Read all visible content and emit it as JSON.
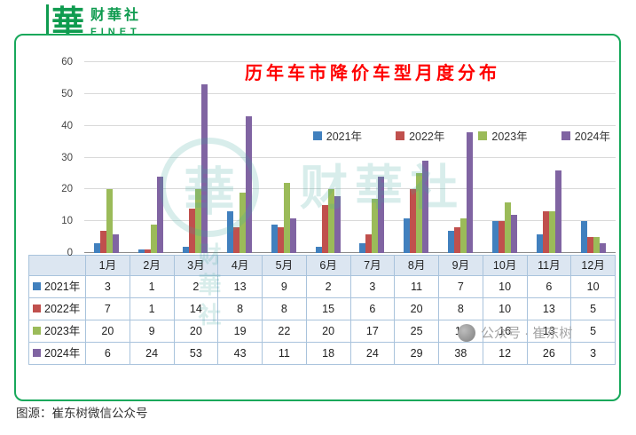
{
  "logo": {
    "glyph": "華",
    "name": "财華社",
    "sub": "FINET"
  },
  "chart_data": {
    "type": "bar",
    "title": "历年车市降价车型月度分布",
    "categories": [
      "1月",
      "2月",
      "3月",
      "4月",
      "5月",
      "6月",
      "7月",
      "8月",
      "9月",
      "10月",
      "11月",
      "12月"
    ],
    "series": [
      {
        "name": "2021年",
        "color": "#4180be",
        "values": [
          3,
          1,
          2,
          13,
          9,
          2,
          3,
          11,
          7,
          10,
          6,
          10
        ]
      },
      {
        "name": "2022年",
        "color": "#c0504d",
        "values": [
          7,
          1,
          14,
          8,
          8,
          15,
          6,
          20,
          8,
          10,
          13,
          5
        ]
      },
      {
        "name": "2023年",
        "color": "#9bbb59",
        "values": [
          20,
          9,
          20,
          19,
          22,
          20,
          17,
          25,
          11,
          16,
          13,
          5
        ]
      },
      {
        "name": "2024年",
        "color": "#8064a2",
        "values": [
          6,
          24,
          53,
          43,
          11,
          18,
          24,
          29,
          38,
          12,
          26,
          3
        ]
      }
    ],
    "ylim": [
      0,
      60
    ],
    "yticks": [
      0,
      10,
      20,
      30,
      40,
      50,
      60
    ],
    "grid": true,
    "legend_position": "top-inline",
    "has_data_table": true
  },
  "watermark": {
    "glyph": "華",
    "big_text": "财華社",
    "small_text": "公众号 · 崔东树"
  },
  "caption": "图源：崔东树微信公众号"
}
